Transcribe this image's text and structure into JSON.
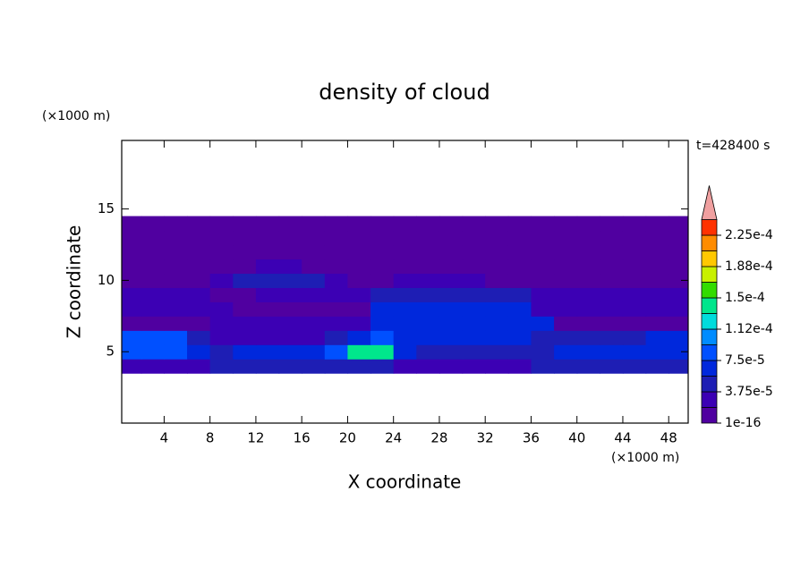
{
  "chart_data": {
    "type": "contour",
    "title": "density of cloud",
    "xlabel": "X coordinate",
    "ylabel": "Z coordinate",
    "x_unit": "(×1000 m)",
    "y_unit": "(×1000 m)",
    "annotation": "t=428400 s",
    "xlim": [
      0.3,
      49.7
    ],
    "ylim": [
      0,
      19.8
    ],
    "xticks": [
      4,
      8,
      12,
      16,
      20,
      24,
      28,
      32,
      36,
      40,
      44,
      48
    ],
    "yticks": [
      5,
      10,
      15
    ],
    "x": [
      1,
      3,
      5,
      7,
      9,
      11,
      13,
      15,
      17,
      19,
      21,
      23,
      25,
      27,
      29,
      31,
      33,
      35,
      37,
      39,
      41,
      43,
      45,
      47,
      49
    ],
    "z": [
      4,
      5,
      6,
      7,
      8,
      9,
      10,
      11,
      12,
      13,
      14
    ],
    "values": [
      [
        3e-05,
        3e-05,
        3e-05,
        3e-05,
        4e-05,
        4e-05,
        4e-05,
        4e-05,
        4e-05,
        4e-05,
        5e-05,
        5e-05,
        3e-05,
        3e-05,
        3e-05,
        3e-05,
        3e-05,
        3e-05,
        4e-05,
        4e-05,
        4e-05,
        4e-05,
        4e-05,
        4e-05,
        4e-05
      ],
      [
        9e-05,
        9e-05,
        9e-05,
        6e-05,
        5e-05,
        6e-05,
        6e-05,
        6e-05,
        6e-05,
        8e-05,
        0.000135,
        0.000135,
        6e-05,
        5e-05,
        5e-05,
        5e-05,
        5e-05,
        5e-05,
        5e-05,
        7e-05,
        7e-05,
        7e-05,
        7e-05,
        7e-05,
        7e-05
      ],
      [
        8e-05,
        9e-05,
        8e-05,
        5e-05,
        3e-05,
        2.5e-05,
        2.5e-05,
        2.5e-05,
        2.5e-05,
        4e-05,
        6e-05,
        8e-05,
        7e-05,
        7e-05,
        7e-05,
        7e-05,
        7e-05,
        7e-05,
        4e-05,
        4e-05,
        4e-05,
        5e-05,
        5e-05,
        7e-05,
        7e-05
      ],
      [
        1e-05,
        1e-05,
        1e-05,
        1e-05,
        2e-05,
        2e-05,
        2e-05,
        2e-05,
        2e-05,
        2e-05,
        3e-05,
        7e-05,
        7e-05,
        7e-05,
        7e-05,
        7e-05,
        7e-05,
        7e-05,
        7e-05,
        1e-05,
        1e-05,
        1e-05,
        1e-05,
        1e-05,
        1e-05
      ],
      [
        2.5e-05,
        2.5e-05,
        2.5e-05,
        2.5e-05,
        2.5e-05,
        1e-05,
        1e-05,
        1e-05,
        1e-05,
        1e-05,
        1e-05,
        6e-05,
        6e-05,
        6e-05,
        6e-05,
        6e-05,
        6e-05,
        6e-05,
        2.5e-05,
        2.5e-05,
        2.5e-05,
        2.5e-05,
        2.5e-05,
        2.5e-05,
        2.5e-05
      ],
      [
        2e-05,
        2e-05,
        2e-05,
        2e-05,
        1e-05,
        1e-05,
        3e-05,
        3e-05,
        3e-05,
        3e-05,
        2e-05,
        4e-05,
        4e-05,
        4e-05,
        4e-05,
        4e-05,
        4e-05,
        4e-05,
        2e-05,
        2e-05,
        2e-05,
        2e-05,
        2e-05,
        2e-05,
        2e-05
      ],
      [
        5e-06,
        5e-06,
        5e-06,
        5e-06,
        3e-05,
        5e-05,
        4e-05,
        5e-05,
        4e-05,
        2.5e-05,
        5e-06,
        5e-06,
        2e-05,
        2e-05,
        2e-05,
        2e-05,
        5e-06,
        5e-06,
        5e-06,
        5e-06,
        5e-06,
        5e-06,
        5e-06,
        5e-06,
        5e-06
      ],
      [
        5e-06,
        5e-06,
        5e-06,
        5e-06,
        5e-06,
        5e-06,
        2e-05,
        2e-05,
        5e-06,
        5e-06,
        5e-06,
        5e-06,
        5e-06,
        5e-06,
        5e-06,
        5e-06,
        5e-06,
        5e-06,
        5e-06,
        5e-06,
        5e-06,
        5e-06,
        5e-06,
        5e-06,
        5e-06
      ],
      [
        5e-06,
        5e-06,
        5e-06,
        5e-06,
        5e-06,
        5e-06,
        5e-06,
        5e-06,
        5e-06,
        5e-06,
        5e-06,
        5e-06,
        5e-06,
        5e-06,
        5e-06,
        5e-06,
        5e-06,
        5e-06,
        5e-06,
        5e-06,
        5e-06,
        5e-06,
        5e-06,
        5e-06,
        5e-06
      ],
      [
        5e-06,
        5e-06,
        5e-06,
        5e-06,
        5e-06,
        5e-06,
        5e-06,
        5e-06,
        5e-06,
        5e-06,
        5e-06,
        5e-06,
        5e-06,
        5e-06,
        5e-06,
        5e-06,
        5e-06,
        5e-06,
        5e-06,
        5e-06,
        5e-06,
        5e-06,
        5e-06,
        5e-06,
        5e-06
      ],
      [
        5e-06,
        5e-06,
        5e-06,
        5e-06,
        5e-06,
        5e-06,
        5e-06,
        5e-06,
        5e-06,
        5e-06,
        5e-06,
        5e-06,
        5e-06,
        5e-06,
        5e-06,
        5e-06,
        5e-06,
        5e-06,
        5e-06,
        5e-06,
        5e-06,
        5e-06,
        5e-06,
        5e-06,
        5e-06
      ]
    ],
    "colorbar": {
      "levels": [
        1e-16,
        1.875e-05,
        3.75e-05,
        5.625e-05,
        7.5e-05,
        9.375e-05,
        0.0001125,
        0.00013125,
        0.00015,
        0.00016875,
        0.0001875,
        0.00020625,
        0.000225,
        0.00024375
      ],
      "colors": [
        "#5000a0",
        "#3c00b4",
        "#1e1eb4",
        "#0028dc",
        "#0050ff",
        "#008cff",
        "#00dcdc",
        "#00e68c",
        "#32dc00",
        "#c8f000",
        "#ffc800",
        "#ff8c00",
        "#ff3200"
      ],
      "extend": "max",
      "extend_color": "#f0a0a0",
      "ticks": [
        1e-16,
        {
          "value": 3.75e-05,
          "label": "3.75e-5"
        },
        {
          "value": 7.5e-05,
          "label": "7.5e-5"
        },
        {
          "value": 0.0001125,
          "label": "1.12e-4"
        },
        {
          "value": 0.00015,
          "label": "1.5e-4"
        },
        {
          "value": 0.0001875,
          "label": "1.88e-4"
        },
        {
          "value": 0.000225,
          "label": "2.25e-4"
        }
      ]
    }
  }
}
